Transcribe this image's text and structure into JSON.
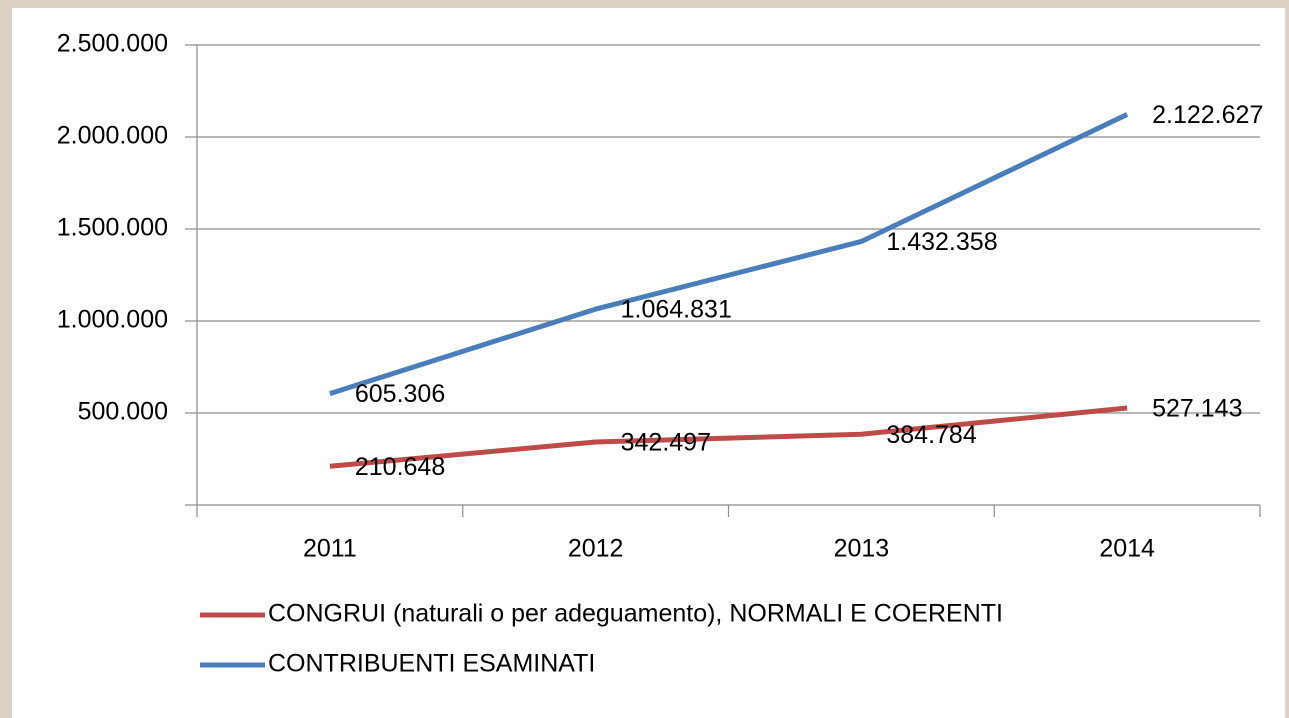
{
  "chart_data": {
    "type": "line",
    "categories": [
      "2011",
      "2012",
      "2013",
      "2014"
    ],
    "series": [
      {
        "name": "CONGRUI (naturali o per adeguamento), NORMALI E COERENTI",
        "color": "#be4b48",
        "values": [
          210648,
          342497,
          384784,
          527143
        ],
        "value_labels": [
          "210.648",
          "342.497",
          "384.784",
          "527.143"
        ]
      },
      {
        "name": "CONTRIBUENTI ESAMINATI",
        "color": "#4a7ebb",
        "values": [
          605306,
          1064831,
          1432358,
          2122627
        ],
        "value_labels": [
          "605.306",
          "1.064.831",
          "1.432.358",
          "2.122.627"
        ]
      }
    ],
    "ylim": [
      0,
      2500000
    ],
    "yticks": [
      {
        "value": 500000,
        "label": "500.000"
      },
      {
        "value": 1000000,
        "label": "1.000.000"
      },
      {
        "value": 1500000,
        "label": "1.500.000"
      },
      {
        "value": 2000000,
        "label": "2.000.000"
      },
      {
        "value": 2500000,
        "label": "2.500.000"
      }
    ],
    "grid": true,
    "legend": "bottom"
  }
}
